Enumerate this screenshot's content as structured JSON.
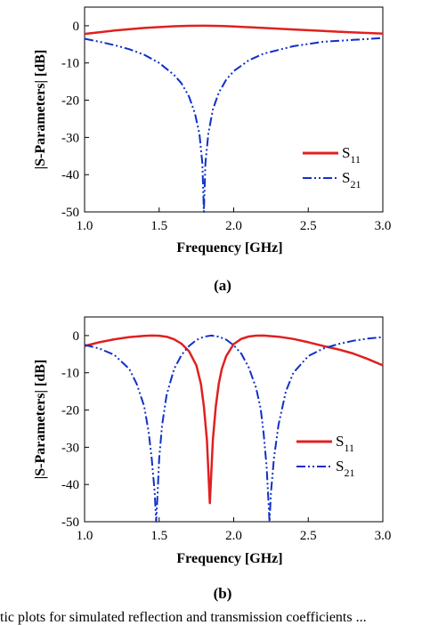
{
  "chart_data": [
    {
      "type": "line",
      "panel_label": "(a)",
      "xlabel": "Frequency [GHz]",
      "ylabel": "|S-Parameters| [dB]",
      "xlim": [
        1.0,
        3.0
      ],
      "ylim": [
        -50,
        5
      ],
      "xticks": [
        "1.0",
        "1.5",
        "2.0",
        "2.5",
        "3.0"
      ],
      "yticks": [
        "0",
        "-10",
        "-20",
        "-30",
        "-40",
        "-50"
      ],
      "legend_position": "center-right",
      "series": [
        {
          "name": "S11",
          "color": "#e02020",
          "style": "solid",
          "x": [
            1.0,
            1.2,
            1.4,
            1.6,
            1.7,
            1.8,
            1.9,
            2.0,
            2.2,
            2.4,
            2.6,
            2.8,
            3.0
          ],
          "y": [
            -2.2,
            -1.3,
            -0.6,
            -0.15,
            -0.03,
            0,
            -0.05,
            -0.2,
            -0.6,
            -1.0,
            -1.4,
            -1.8,
            -2.1
          ]
        },
        {
          "name": "S21",
          "color": "#1030c8",
          "style": "dash-dot-dot",
          "x": [
            1.0,
            1.1,
            1.2,
            1.3,
            1.4,
            1.5,
            1.6,
            1.65,
            1.7,
            1.74,
            1.77,
            1.79,
            1.8,
            1.81,
            1.83,
            1.86,
            1.9,
            1.95,
            2.0,
            2.1,
            2.2,
            2.4,
            2.6,
            2.8,
            3.0
          ],
          "y": [
            -3.5,
            -4.3,
            -5.2,
            -6.3,
            -7.8,
            -10,
            -13.2,
            -15.5,
            -19,
            -23.5,
            -29,
            -37,
            -50,
            -37,
            -29,
            -22.5,
            -18,
            -14.5,
            -12.2,
            -9.3,
            -7.5,
            -5.5,
            -4.3,
            -3.8,
            -3.3
          ]
        }
      ]
    },
    {
      "type": "line",
      "panel_label": "(b)",
      "xlabel": "Frequency [GHz]",
      "ylabel": "|S-Parameters| [dB]",
      "xlim": [
        1.0,
        3.0
      ],
      "ylim": [
        -50,
        5
      ],
      "xticks": [
        "1.0",
        "1.5",
        "2.0",
        "2.5",
        "3.0"
      ],
      "yticks": [
        "0",
        "-10",
        "-20",
        "-30",
        "-40",
        "-50"
      ],
      "legend_position": "center-right",
      "series": [
        {
          "name": "S11",
          "color": "#e02020",
          "style": "solid",
          "x": [
            1.0,
            1.1,
            1.2,
            1.3,
            1.4,
            1.45,
            1.5,
            1.55,
            1.6,
            1.65,
            1.7,
            1.75,
            1.78,
            1.8,
            1.82,
            1.84,
            1.86,
            1.88,
            1.9,
            1.92,
            1.95,
            2.0,
            2.05,
            2.1,
            2.15,
            2.2,
            2.3,
            2.4,
            2.5,
            2.6,
            2.7,
            2.8,
            2.9,
            3.0
          ],
          "y": [
            -2.8,
            -1.8,
            -1.0,
            -0.4,
            -0.08,
            0,
            -0.05,
            -0.3,
            -1.0,
            -2.2,
            -4.2,
            -8,
            -13,
            -19,
            -28,
            -45,
            -28,
            -19,
            -13,
            -9,
            -5.5,
            -2.3,
            -0.9,
            -0.25,
            -0.02,
            0,
            -0.3,
            -0.9,
            -1.8,
            -2.8,
            -3.7,
            -4.8,
            -6.3,
            -8.0
          ]
        },
        {
          "name": "S21",
          "color": "#1030c8",
          "style": "dash-dot-dot",
          "x": [
            1.0,
            1.1,
            1.2,
            1.3,
            1.35,
            1.4,
            1.43,
            1.45,
            1.47,
            1.48,
            1.49,
            1.5,
            1.52,
            1.55,
            1.6,
            1.65,
            1.7,
            1.75,
            1.8,
            1.85,
            1.9,
            1.95,
            2.0,
            2.05,
            2.1,
            2.15,
            2.18,
            2.2,
            2.22,
            2.23,
            2.24,
            2.25,
            2.27,
            2.3,
            2.35,
            2.4,
            2.5,
            2.6,
            2.7,
            2.8,
            2.9,
            3.0
          ],
          "y": [
            -2.5,
            -3.5,
            -5.2,
            -9,
            -13,
            -19,
            -26,
            -33,
            -42,
            -50,
            -42,
            -33,
            -24,
            -16,
            -9,
            -5.2,
            -2.8,
            -1.2,
            -0.3,
            0,
            -0.3,
            -1.1,
            -2.6,
            -4.8,
            -8.5,
            -14,
            -19.5,
            -26,
            -35,
            -42,
            -50,
            -42,
            -33,
            -24,
            -15,
            -10,
            -5.5,
            -3.5,
            -2.3,
            -1.4,
            -0.8,
            -0.4
          ]
        }
      ]
    }
  ],
  "caption": {
    "line1": "tic plots for simulated reflection and transmission coefficients ..."
  }
}
